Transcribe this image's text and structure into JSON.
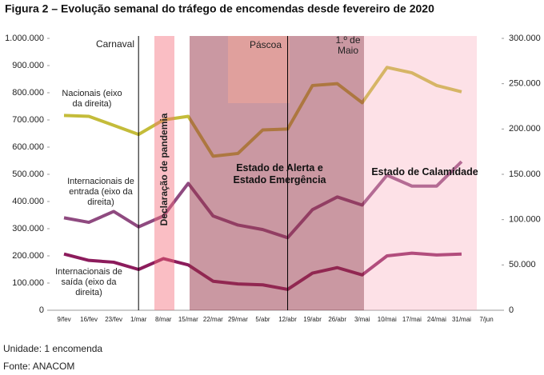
{
  "chart_data": {
    "type": "line",
    "title": "Figura 2 – Evolução semanal do tráfego de encomendas desde fevereiro de 2020",
    "categories": [
      "9/fev",
      "16/fev",
      "23/fev",
      "1/mar",
      "8/mar",
      "15/mar",
      "22/mar",
      "29/mar",
      "5/abr",
      "12/abr",
      "19/abr",
      "26/abr",
      "3/mai",
      "10/mai",
      "17/mai",
      "24/mai",
      "31/mai",
      "7/jun"
    ],
    "series": [
      {
        "name": "Nacionais (eixo da direita)",
        "color": "#c4bc3a",
        "axis": "y2",
        "values": [
          215000,
          214000,
          204000,
          194000,
          210000,
          214000,
          170000,
          173000,
          199000,
          200000,
          248000,
          250000,
          229000,
          268000,
          262000,
          248000,
          241000,
          null
        ]
      },
      {
        "name": "Internacionais de entrada (eixo da direita)",
        "color": "#8f4a80",
        "axis": "y2",
        "values": [
          102000,
          97000,
          109000,
          92000,
          104000,
          140000,
          104000,
          94000,
          89000,
          80000,
          111000,
          125000,
          116000,
          149000,
          137000,
          137000,
          164000,
          null
        ]
      },
      {
        "name": "Internacionais de saída (eixo da direita)",
        "color": "#8c1c5c",
        "axis": "y2",
        "values": [
          62000,
          55000,
          53000,
          45000,
          57000,
          50000,
          32000,
          29000,
          28000,
          23000,
          41000,
          47000,
          39000,
          60000,
          63000,
          61000,
          62000,
          null
        ]
      }
    ],
    "ylim": [
      0,
      1000000
    ],
    "yticks": [
      0,
      {
        "value": 100000,
        "label": "100.000"
      },
      {
        "value": 200000,
        "label": "200.000"
      },
      {
        "value": 300000,
        "label": "300.000"
      },
      {
        "value": 400000,
        "label": "400.000"
      },
      {
        "value": 500000,
        "label": "500.000"
      },
      {
        "value": 600000,
        "label": "600.000"
      },
      {
        "value": 700000,
        "label": "700.000"
      },
      {
        "value": 800000,
        "label": "800.000"
      },
      {
        "value": 900000,
        "label": "900.000"
      },
      {
        "value": 1000000,
        "label": "1.000.000"
      }
    ],
    "y2lim": [
      0,
      300000
    ],
    "y2ticks": [
      0,
      {
        "value": 50000,
        "label": "50.000"
      },
      {
        "value": 100000,
        "label": "100.000"
      },
      {
        "value": 150000,
        "label": "150.000"
      },
      {
        "value": 200000,
        "label": "200.000"
      },
      {
        "value": 250000,
        "label": "250.000"
      },
      {
        "value": 300000,
        "label": "300.000"
      }
    ],
    "annotations": [
      "Carnaval",
      "Declaração de pandemia",
      "Páscoa",
      "1.º de Maio",
      "Estado de Alerta e Estado Emergência",
      "Estado de Calamidade"
    ],
    "footnotes": [
      "Unidade: 1 encomenda",
      "Fonte: ANACOM"
    ]
  }
}
